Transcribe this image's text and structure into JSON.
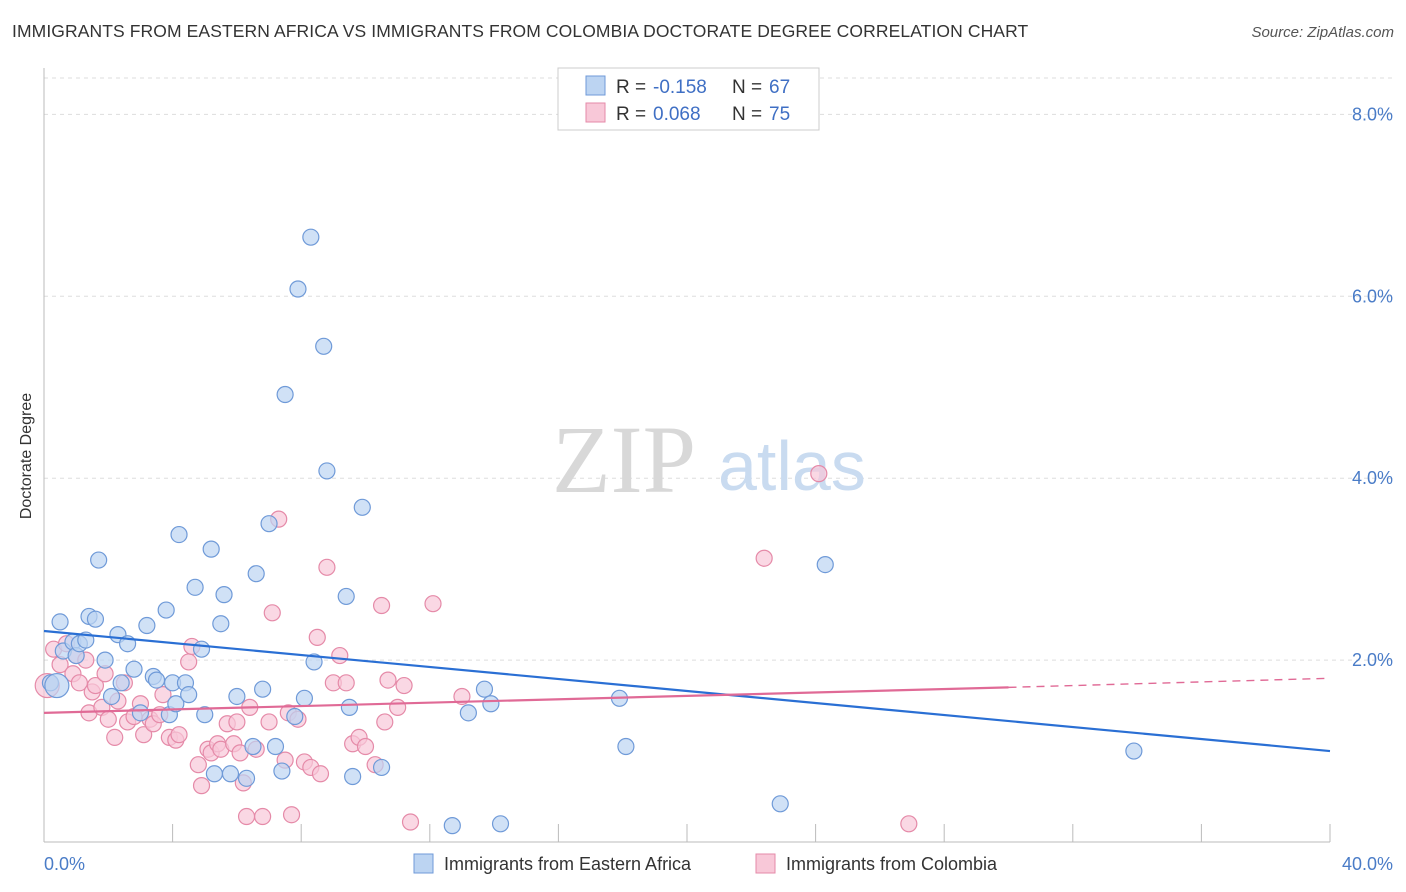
{
  "title": "IMMIGRANTS FROM EASTERN AFRICA VS IMMIGRANTS FROM COLOMBIA DOCTORATE DEGREE CORRELATION CHART",
  "source": "Source: ZipAtlas.com",
  "watermark": {
    "zip": "ZIP",
    "atlas": "atlas"
  },
  "colors": {
    "blue_fill": "#bcd4f2",
    "blue_stroke": "#6f9ad8",
    "blue_line": "#2a6fd4",
    "pink_fill": "#f8c8d8",
    "pink_stroke": "#e58aa8",
    "pink_line": "#e06a96",
    "value_text": "#3f6fc4",
    "grid": "#dddddd"
  },
  "legend": {
    "rows": [
      {
        "r_label": "R =",
        "r_value": "-0.158",
        "n_label": "N =",
        "n_value": "67",
        "series": "blue"
      },
      {
        "r_label": "R =",
        "r_value": "0.068",
        "n_label": "N =",
        "n_value": "75",
        "series": "pink"
      }
    ]
  },
  "chart_data": {
    "type": "scatter",
    "title": "IMMIGRANTS FROM EASTERN AFRICA VS IMMIGRANTS FROM COLOMBIA DOCTORATE DEGREE CORRELATION CHART",
    "xlabel": "",
    "ylabel": "Doctorate Degree",
    "xlim": [
      0,
      40
    ],
    "ylim": [
      0,
      8.4
    ],
    "x_tick_labels": [
      {
        "value": 0,
        "label": "0.0%"
      },
      {
        "value": 40,
        "label": "40.0%"
      }
    ],
    "y_tick_labels": [
      {
        "value": 2,
        "label": "2.0%"
      },
      {
        "value": 4,
        "label": "4.0%"
      },
      {
        "value": 6,
        "label": "6.0%"
      },
      {
        "value": 8,
        "label": "8.0%"
      }
    ],
    "grid": "horizontal dashed",
    "legend_position": "top-center",
    "series": [
      {
        "name": "Immigrants from Eastern Africa",
        "color": "blue",
        "trend": {
          "x": [
            0,
            40
          ],
          "y": [
            2.32,
            1.0
          ]
        },
        "points": [
          [
            0.2,
            1.75
          ],
          [
            0.5,
            2.42
          ],
          [
            0.6,
            2.1
          ],
          [
            0.9,
            2.2
          ],
          [
            1.0,
            2.05
          ],
          [
            1.1,
            2.18
          ],
          [
            1.3,
            2.22
          ],
          [
            1.4,
            2.48
          ],
          [
            1.6,
            2.45
          ],
          [
            1.7,
            3.1
          ],
          [
            1.9,
            2.0
          ],
          [
            2.1,
            1.6
          ],
          [
            2.3,
            2.28
          ],
          [
            2.4,
            1.75
          ],
          [
            2.6,
            2.18
          ],
          [
            2.8,
            1.9
          ],
          [
            3.0,
            1.42
          ],
          [
            3.2,
            2.38
          ],
          [
            3.4,
            1.82
          ],
          [
            3.5,
            1.78
          ],
          [
            3.8,
            2.55
          ],
          [
            3.9,
            1.4
          ],
          [
            4.0,
            1.75
          ],
          [
            4.1,
            1.52
          ],
          [
            4.2,
            3.38
          ],
          [
            4.4,
            1.75
          ],
          [
            4.5,
            1.62
          ],
          [
            4.7,
            2.8
          ],
          [
            4.9,
            2.12
          ],
          [
            5.0,
            1.4
          ],
          [
            5.2,
            3.22
          ],
          [
            5.3,
            0.75
          ],
          [
            5.5,
            2.4
          ],
          [
            5.6,
            2.72
          ],
          [
            5.8,
            0.75
          ],
          [
            6.0,
            1.6
          ],
          [
            6.3,
            0.7
          ],
          [
            6.5,
            1.05
          ],
          [
            6.6,
            2.95
          ],
          [
            6.8,
            1.68
          ],
          [
            7.0,
            3.5
          ],
          [
            7.2,
            1.05
          ],
          [
            7.4,
            0.78
          ],
          [
            7.5,
            4.92
          ],
          [
            7.8,
            1.38
          ],
          [
            7.9,
            6.08
          ],
          [
            8.1,
            1.58
          ],
          [
            8.3,
            6.65
          ],
          [
            8.4,
            1.98
          ],
          [
            8.7,
            5.45
          ],
          [
            8.8,
            4.08
          ],
          [
            9.5,
            1.48
          ],
          [
            9.6,
            0.72
          ],
          [
            9.9,
            3.68
          ],
          [
            10.5,
            0.82
          ],
          [
            9.4,
            2.7
          ],
          [
            12.7,
            0.18
          ],
          [
            13.2,
            1.42
          ],
          [
            13.7,
            1.68
          ],
          [
            13.9,
            1.52
          ],
          [
            14.2,
            0.2
          ],
          [
            17.9,
            1.58
          ],
          [
            18.1,
            1.05
          ],
          [
            22.9,
            0.42
          ],
          [
            24.3,
            3.05
          ],
          [
            33.9,
            1.0
          ],
          [
            0.4,
            1.72
          ]
        ]
      },
      {
        "name": "Immigrants from Colombia",
        "color": "pink",
        "trend": {
          "x": [
            0,
            30
          ],
          "y": [
            1.42,
            1.7
          ]
        },
        "trend_dashed": {
          "x": [
            30,
            40
          ],
          "y": [
            1.7,
            1.8
          ]
        },
        "points": [
          [
            0.1,
            1.72
          ],
          [
            0.3,
            2.12
          ],
          [
            0.5,
            1.95
          ],
          [
            0.7,
            2.18
          ],
          [
            0.9,
            1.85
          ],
          [
            1.0,
            2.05
          ],
          [
            1.1,
            1.75
          ],
          [
            1.3,
            2.0
          ],
          [
            1.4,
            1.42
          ],
          [
            1.5,
            1.65
          ],
          [
            1.6,
            1.72
          ],
          [
            1.8,
            1.48
          ],
          [
            1.9,
            1.85
          ],
          [
            2.0,
            1.35
          ],
          [
            2.2,
            1.15
          ],
          [
            2.3,
            1.55
          ],
          [
            2.5,
            1.75
          ],
          [
            2.6,
            1.32
          ],
          [
            2.8,
            1.38
          ],
          [
            3.0,
            1.52
          ],
          [
            3.1,
            1.18
          ],
          [
            3.3,
            1.35
          ],
          [
            3.4,
            1.3
          ],
          [
            3.6,
            1.4
          ],
          [
            3.7,
            1.62
          ],
          [
            3.9,
            1.15
          ],
          [
            4.1,
            1.12
          ],
          [
            4.2,
            1.18
          ],
          [
            4.5,
            1.98
          ],
          [
            4.6,
            2.15
          ],
          [
            4.8,
            0.85
          ],
          [
            4.9,
            0.62
          ],
          [
            5.1,
            1.02
          ],
          [
            5.2,
            0.98
          ],
          [
            5.4,
            1.08
          ],
          [
            5.5,
            1.02
          ],
          [
            5.7,
            1.3
          ],
          [
            5.9,
            1.08
          ],
          [
            6.0,
            1.32
          ],
          [
            6.1,
            0.98
          ],
          [
            6.2,
            0.65
          ],
          [
            6.3,
            0.28
          ],
          [
            6.4,
            1.48
          ],
          [
            6.6,
            1.02
          ],
          [
            6.8,
            0.28
          ],
          [
            7.0,
            1.32
          ],
          [
            7.1,
            2.52
          ],
          [
            7.3,
            3.55
          ],
          [
            7.5,
            0.9
          ],
          [
            7.6,
            1.42
          ],
          [
            7.7,
            0.3
          ],
          [
            7.9,
            1.35
          ],
          [
            8.1,
            0.88
          ],
          [
            8.3,
            0.82
          ],
          [
            8.5,
            2.25
          ],
          [
            8.6,
            0.75
          ],
          [
            8.8,
            3.02
          ],
          [
            9.0,
            1.75
          ],
          [
            9.2,
            2.05
          ],
          [
            9.4,
            1.75
          ],
          [
            9.6,
            1.08
          ],
          [
            9.8,
            1.15
          ],
          [
            10.0,
            1.05
          ],
          [
            10.3,
            0.85
          ],
          [
            10.5,
            2.6
          ],
          [
            10.6,
            1.32
          ],
          [
            10.7,
            1.78
          ],
          [
            11.0,
            1.48
          ],
          [
            11.2,
            1.72
          ],
          [
            11.4,
            0.22
          ],
          [
            12.1,
            2.62
          ],
          [
            13.0,
            1.6
          ],
          [
            22.4,
            3.12
          ],
          [
            24.1,
            4.05
          ],
          [
            26.9,
            0.2
          ]
        ]
      }
    ]
  },
  "bottom_legend": [
    {
      "label": "Immigrants from Eastern Africa",
      "series": "blue"
    },
    {
      "label": "Immigrants from Colombia",
      "series": "pink"
    }
  ]
}
